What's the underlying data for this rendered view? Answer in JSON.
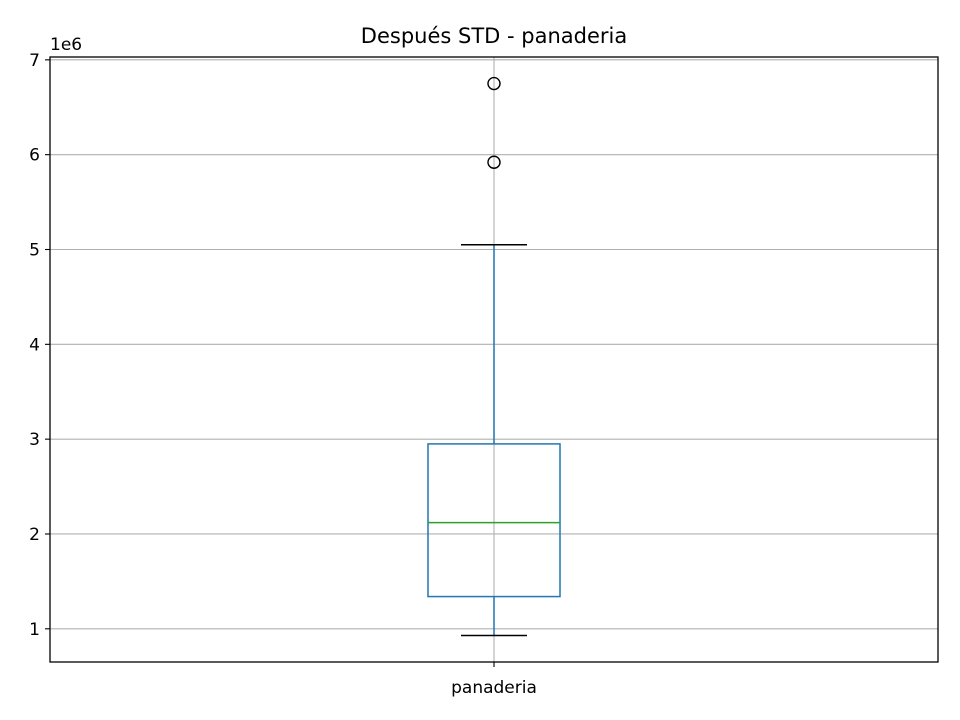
{
  "chart_data": {
    "type": "box",
    "title": "Después STD - panaderia",
    "xlabel": "",
    "ylabel": "",
    "y_offset_label": "1e6",
    "y_multiplier": 1000000,
    "ylim": [
      0.65,
      7.03
    ],
    "yticks": [
      1,
      2,
      3,
      4,
      5,
      6,
      7
    ],
    "grid": true,
    "categories": [
      "panaderia"
    ],
    "boxes": [
      {
        "name": "panaderia",
        "whisker_low": 0.93,
        "q1": 1.34,
        "median": 2.12,
        "q3": 2.95,
        "whisker_high": 5.05,
        "outliers": [
          5.92,
          6.75
        ]
      }
    ],
    "colors": {
      "box": "#1f77b4",
      "median": "#2ca02c",
      "whisker_cap": "#000000",
      "grid": "#b0b0b0",
      "axes": "#000000"
    }
  }
}
